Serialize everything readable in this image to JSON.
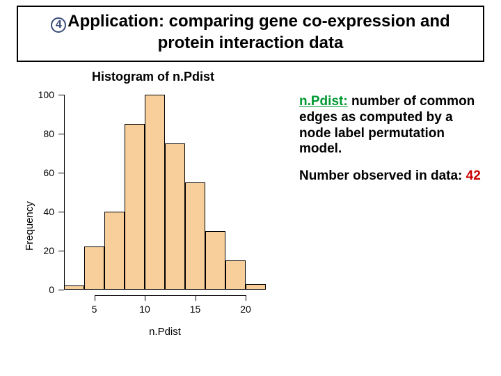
{
  "title": {
    "bullet_glyph": "4",
    "line1": "Application: comparing gene co-expression and",
    "line2": "protein interaction data"
  },
  "chart": {
    "type": "histogram",
    "title": "Histogram of n.Pdist",
    "xlabel": "n.Pdist",
    "ylabel": "Frequency",
    "bar_color": "#f8cf9a",
    "bar_border": "#000000",
    "background": "#ffffff",
    "xlim": [
      2,
      22
    ],
    "ylim": [
      0,
      100
    ],
    "xticks": [
      5,
      10,
      15,
      20
    ],
    "yticks": [
      0,
      20,
      40,
      60,
      80,
      100
    ],
    "bin_width": 2,
    "bin_edges": [
      2,
      4,
      6,
      8,
      10,
      12,
      14,
      16,
      18,
      20,
      22
    ],
    "counts": [
      2,
      22,
      40,
      85,
      100,
      75,
      55,
      30,
      15,
      3
    ]
  },
  "description": {
    "term": "n.Pdist:",
    "body": " number of common edges as computed by a node label per­mutation model.",
    "observed_label": "Number observed in  data: ",
    "observed_value": "42"
  }
}
